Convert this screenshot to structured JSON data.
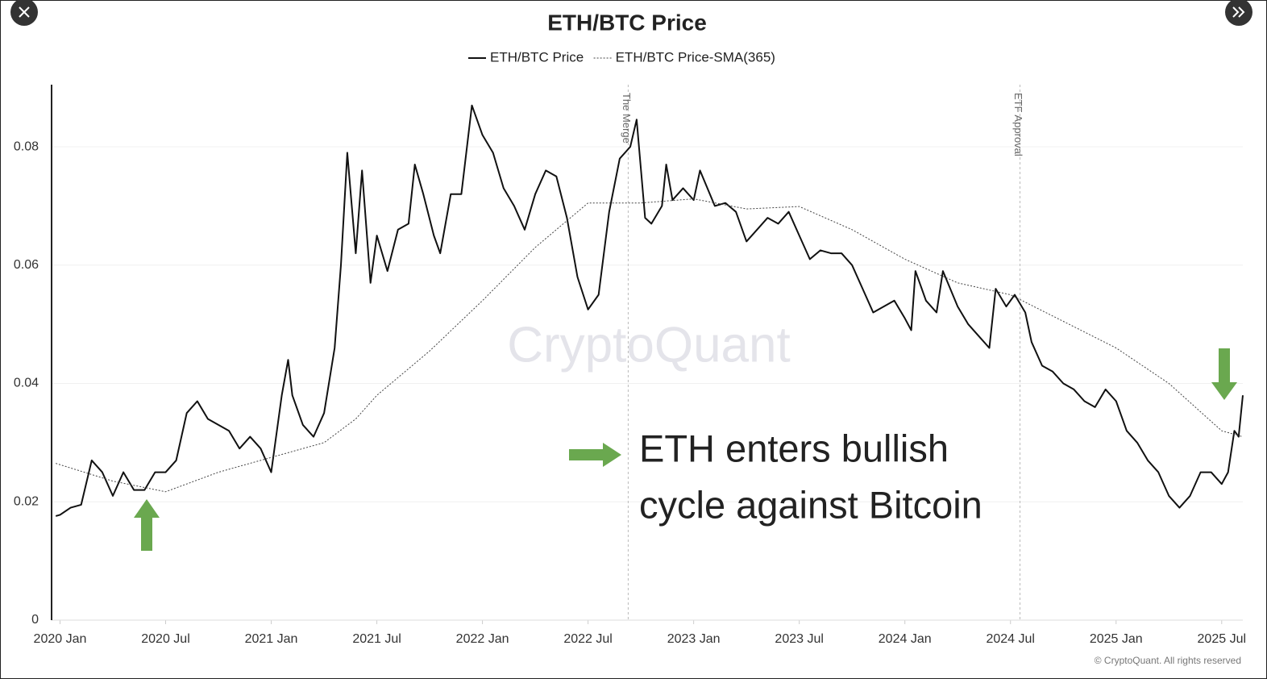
{
  "chart_data": {
    "type": "line",
    "title": "ETH/BTC Price",
    "series": [
      {
        "name": "ETH/BTC Price",
        "color": "#111111",
        "style": "solid",
        "x": [
          2019.98,
          2020.0,
          2020.05,
          2020.1,
          2020.15,
          2020.2,
          2020.25,
          2020.3,
          2020.35,
          2020.4,
          2020.45,
          2020.5,
          2020.55,
          2020.6,
          2020.65,
          2020.7,
          2020.75,
          2020.8,
          2020.85,
          2020.9,
          2020.95,
          2021.0,
          2021.05,
          2021.08,
          2021.1,
          2021.15,
          2021.2,
          2021.25,
          2021.3,
          2021.33,
          2021.36,
          2021.4,
          2021.43,
          2021.47,
          2021.5,
          2021.55,
          2021.6,
          2021.65,
          2021.68,
          2021.72,
          2021.77,
          2021.8,
          2021.85,
          2021.9,
          2021.95,
          2022.0,
          2022.05,
          2022.1,
          2022.15,
          2022.2,
          2022.25,
          2022.3,
          2022.35,
          2022.4,
          2022.45,
          2022.5,
          2022.55,
          2022.6,
          2022.65,
          2022.7,
          2022.73,
          2022.77,
          2022.8,
          2022.85,
          2022.87,
          2022.9,
          2022.95,
          2023.0,
          2023.03,
          2023.1,
          2023.15,
          2023.2,
          2023.25,
          2023.3,
          2023.35,
          2023.4,
          2023.45,
          2023.5,
          2023.55,
          2023.6,
          2023.65,
          2023.7,
          2023.75,
          2023.8,
          2023.85,
          2023.9,
          2023.95,
          2024.0,
          2024.03,
          2024.05,
          2024.1,
          2024.15,
          2024.18,
          2024.25,
          2024.3,
          2024.35,
          2024.4,
          2024.43,
          2024.48,
          2024.52,
          2024.57,
          2024.6,
          2024.65,
          2024.7,
          2024.75,
          2024.8,
          2024.85,
          2024.9,
          2024.95,
          2025.0,
          2025.05,
          2025.1,
          2025.15,
          2025.2,
          2025.25,
          2025.3,
          2025.35,
          2025.4,
          2025.45,
          2025.5,
          2025.53,
          2025.56,
          2025.58,
          2025.6
        ],
        "values": [
          0.0176,
          0.0178,
          0.019,
          0.0195,
          0.027,
          0.025,
          0.021,
          0.025,
          0.022,
          0.022,
          0.025,
          0.025,
          0.027,
          0.035,
          0.037,
          0.034,
          0.033,
          0.032,
          0.029,
          0.031,
          0.029,
          0.025,
          0.038,
          0.044,
          0.038,
          0.033,
          0.031,
          0.035,
          0.046,
          0.06,
          0.079,
          0.062,
          0.076,
          0.057,
          0.065,
          0.059,
          0.066,
          0.067,
          0.077,
          0.072,
          0.065,
          0.062,
          0.072,
          0.072,
          0.087,
          0.082,
          0.079,
          0.073,
          0.07,
          0.066,
          0.072,
          0.076,
          0.075,
          0.068,
          0.058,
          0.0525,
          0.055,
          0.069,
          0.078,
          0.08,
          0.0846,
          0.068,
          0.067,
          0.07,
          0.077,
          0.071,
          0.073,
          0.071,
          0.076,
          0.07,
          0.0705,
          0.069,
          0.064,
          0.066,
          0.068,
          0.067,
          0.069,
          0.065,
          0.061,
          0.0625,
          0.062,
          0.062,
          0.06,
          0.056,
          0.052,
          0.053,
          0.054,
          0.051,
          0.049,
          0.059,
          0.054,
          0.052,
          0.059,
          0.053,
          0.05,
          0.048,
          0.046,
          0.056,
          0.053,
          0.055,
          0.052,
          0.047,
          0.043,
          0.042,
          0.04,
          0.039,
          0.037,
          0.036,
          0.039,
          0.037,
          0.032,
          0.03,
          0.027,
          0.025,
          0.021,
          0.019,
          0.021,
          0.025,
          0.025,
          0.023,
          0.025,
          0.032,
          0.031,
          0.038
        ]
      },
      {
        "name": "ETH/BTC Price-SMA(365)",
        "color": "#444444",
        "style": "dotted",
        "x": [
          2019.98,
          2020.25,
          2020.5,
          2020.75,
          2021.0,
          2021.25,
          2021.4,
          2021.5,
          2021.75,
          2022.0,
          2022.25,
          2022.5,
          2022.75,
          2023.0,
          2023.25,
          2023.5,
          2023.75,
          2024.0,
          2024.25,
          2024.5,
          2024.75,
          2025.0,
          2025.25,
          2025.5,
          2025.6
        ],
        "values": [
          0.0265,
          0.0235,
          0.0217,
          0.025,
          0.0275,
          0.03,
          0.034,
          0.038,
          0.0455,
          0.054,
          0.063,
          0.0705,
          0.0705,
          0.0712,
          0.0695,
          0.0699,
          0.066,
          0.061,
          0.057,
          0.055,
          0.0505,
          0.046,
          0.04,
          0.032,
          0.031
        ]
      }
    ],
    "xlim": [
      2019.96,
      2025.6
    ],
    "xticks": [
      {
        "value": 2020,
        "label": "2020 Jan"
      },
      {
        "value": 2020.5,
        "label": "2020 Jul"
      },
      {
        "value": 2021,
        "label": "2021 Jan"
      },
      {
        "value": 2021.5,
        "label": "2021 Jul"
      },
      {
        "value": 2022,
        "label": "2022 Jan"
      },
      {
        "value": 2022.5,
        "label": "2022 Jul"
      },
      {
        "value": 2023,
        "label": "2023 Jan"
      },
      {
        "value": 2023.5,
        "label": "2023 Jul"
      },
      {
        "value": 2024,
        "label": "2024 Jan"
      },
      {
        "value": 2024.5,
        "label": "2024 Jul"
      },
      {
        "value": 2025,
        "label": "2025 Jan"
      },
      {
        "value": 2025.5,
        "label": "2025 Jul"
      }
    ],
    "ylim": [
      0,
      0.0905
    ],
    "yticks": [
      0,
      0.02,
      0.04,
      0.06,
      0.08
    ],
    "grid": true,
    "legend": "top",
    "vlines": [
      {
        "x": 2022.69,
        "label": "The Merge"
      },
      {
        "x": 2024.545,
        "label": "ETF Approval"
      }
    ],
    "annotation": [
      "ETH enters bullish",
      "cycle against Bitcoin"
    ],
    "watermark": "CryptoQuant",
    "copyright": "© CryptoQuant. All rights reserved"
  }
}
